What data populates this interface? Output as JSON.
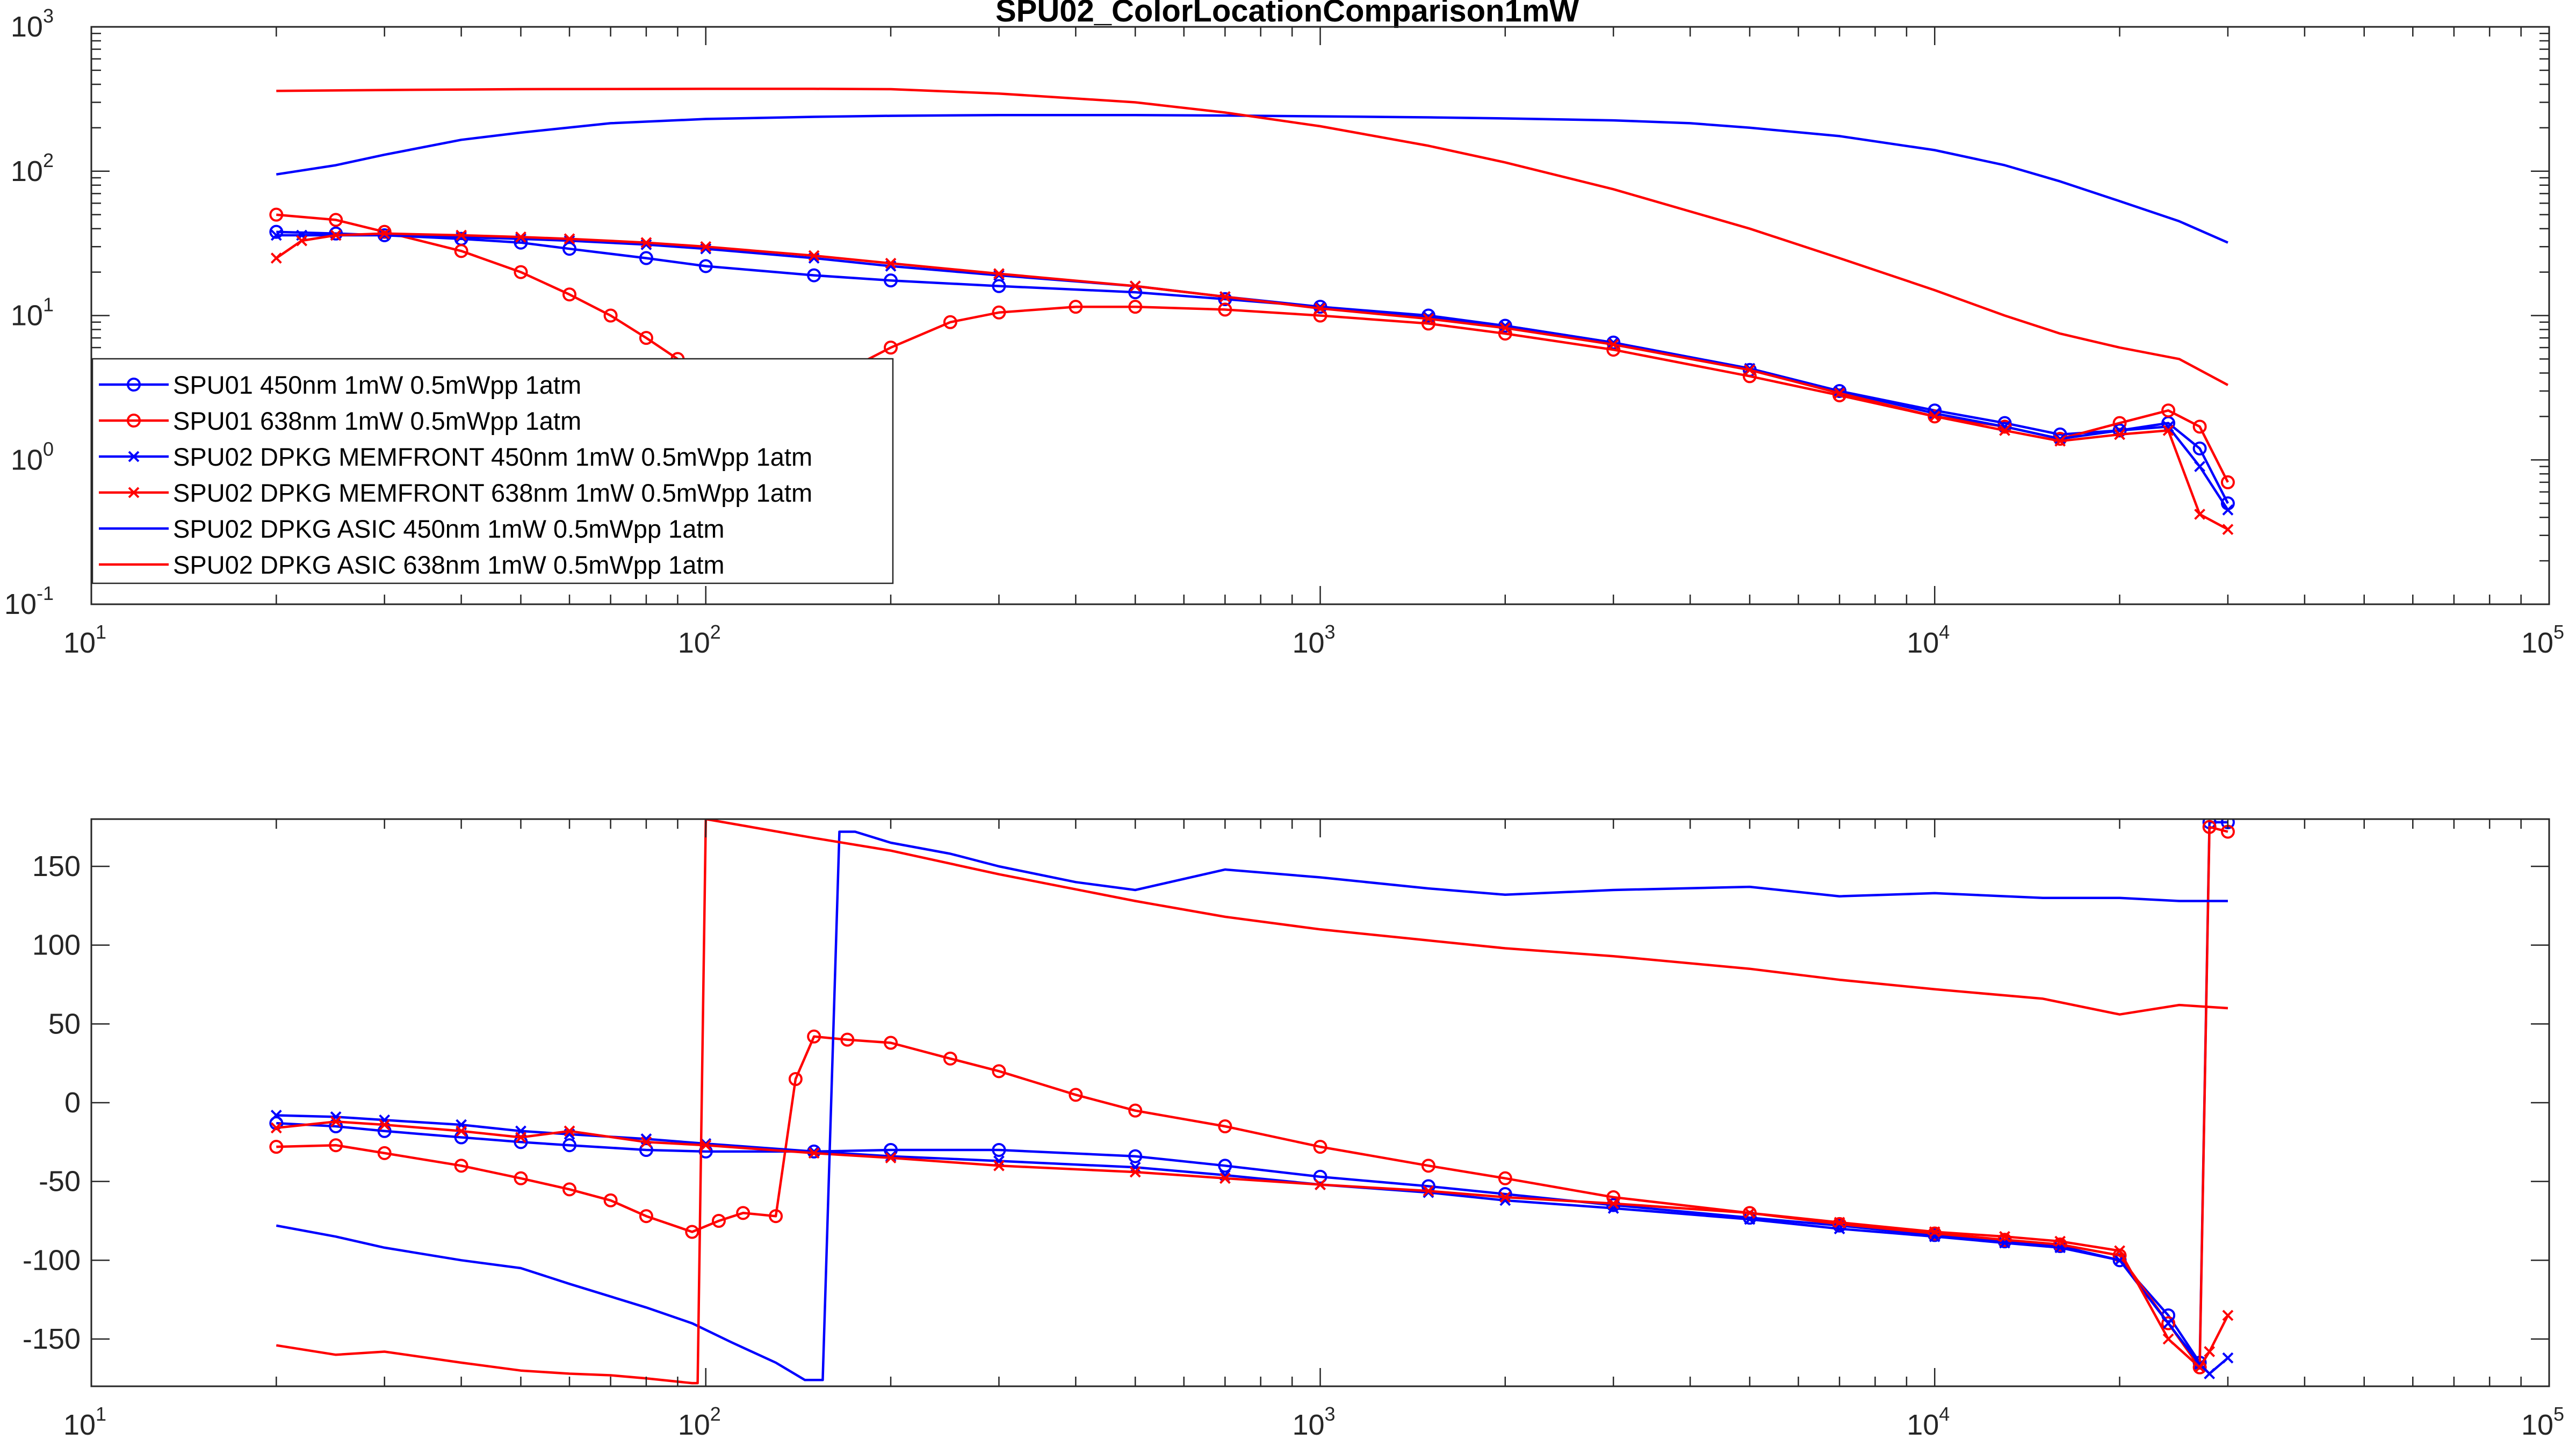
{
  "figure": {
    "title": "SPU02_ColorLocationComparison1mW"
  },
  "colors": {
    "blue": "#0000ff",
    "red": "#ff0000",
    "axis": "#262626"
  },
  "chart_data": [
    {
      "type": "line",
      "panel": "magnitude",
      "title": "SPU02_ColorLocationComparison1mW",
      "xlabel": "",
      "ylabel": "",
      "xscale": "log",
      "yscale": "log",
      "xlim": [
        10,
        100000
      ],
      "ylim": [
        0.1,
        1000
      ],
      "x_ticks": [
        {
          "base": "10",
          "exp": "1"
        },
        {
          "base": "10",
          "exp": "2"
        },
        {
          "base": "10",
          "exp": "3"
        },
        {
          "base": "10",
          "exp": "4"
        },
        {
          "base": "10",
          "exp": "5"
        }
      ],
      "y_ticks": [
        {
          "base": "10",
          "exp": "-1"
        },
        {
          "base": "10",
          "exp": "0"
        },
        {
          "base": "10",
          "exp": "1"
        },
        {
          "base": "10",
          "exp": "2"
        },
        {
          "base": "10",
          "exp": "3"
        }
      ],
      "grid": false,
      "legend": "inside-left",
      "series": [
        {
          "name": "SPU01 450nm 1mW 0.5mWpp 1atm",
          "color": "#0000ff",
          "marker": "circle",
          "x": [
            20,
            25,
            30,
            40,
            50,
            60,
            80,
            100,
            150,
            200,
            300,
            500,
            700,
            1000,
            1500,
            2000,
            3000,
            5000,
            7000,
            10000,
            13000,
            16000,
            20000,
            24000,
            27000,
            30000
          ],
          "y": [
            38,
            37,
            36,
            34,
            32,
            29,
            25,
            22,
            19,
            17.5,
            16,
            14.5,
            13,
            11.5,
            10,
            8.5,
            6.5,
            4.2,
            3,
            2.2,
            1.8,
            1.5,
            1.6,
            1.8,
            1.2,
            0.5
          ]
        },
        {
          "name": "SPU01 638nm 1mW 0.5mWpp 1atm",
          "color": "#ff0000",
          "marker": "circle",
          "x": [
            20,
            25,
            30,
            40,
            50,
            60,
            70,
            80,
            90,
            100,
            110,
            130,
            150,
            170,
            200,
            250,
            300,
            400,
            500,
            700,
            1000,
            1500,
            2000,
            3000,
            5000,
            7000,
            10000,
            13000,
            16000,
            20000,
            24000,
            27000,
            30000
          ],
          "y": [
            50,
            46,
            38,
            28,
            20,
            14,
            10,
            7,
            5,
            3.8,
            2.8,
            2.3,
            2.8,
            4.2,
            6,
            9,
            10.5,
            11.5,
            11.5,
            11,
            10,
            8.8,
            7.5,
            5.8,
            3.8,
            2.8,
            2,
            1.7,
            1.4,
            1.8,
            2.2,
            1.7,
            0.7
          ]
        },
        {
          "name": "SPU02 DPKG MEMFRONT 450nm 1mW 0.5mWpp 1atm",
          "color": "#0000ff",
          "marker": "x",
          "x": [
            20,
            22,
            25,
            30,
            40,
            50,
            60,
            80,
            100,
            150,
            200,
            300,
            500,
            700,
            1000,
            1500,
            2000,
            3000,
            5000,
            7000,
            10000,
            13000,
            16000,
            20000,
            24000,
            27000,
            30000
          ],
          "y": [
            36,
            36,
            36,
            36,
            35,
            34,
            33,
            31,
            29,
            25,
            22,
            19,
            16,
            13.5,
            11.5,
            9.8,
            8.5,
            6.5,
            4.3,
            3,
            2.1,
            1.7,
            1.4,
            1.6,
            1.7,
            0.9,
            0.45
          ]
        },
        {
          "name": "SPU02 DPKG MEMFRONT 638nm 1mW 0.5mWpp 1atm",
          "color": "#ff0000",
          "marker": "x",
          "x": [
            20,
            22,
            25,
            30,
            40,
            50,
            60,
            80,
            100,
            150,
            200,
            300,
            500,
            700,
            1000,
            1500,
            2000,
            3000,
            5000,
            7000,
            10000,
            13000,
            16000,
            20000,
            24000,
            27000,
            30000
          ],
          "y": [
            25,
            33,
            36,
            37,
            36,
            35,
            34,
            32,
            30,
            26,
            23,
            19.5,
            16,
            13.5,
            11.2,
            9.5,
            8.2,
            6.3,
            4.2,
            2.9,
            2.0,
            1.6,
            1.35,
            1.5,
            1.6,
            0.42,
            0.33
          ]
        },
        {
          "name": "SPU02 DPKG ASIC 450nm 1mW 0.5mWpp 1atm",
          "color": "#0000ff",
          "marker": "none",
          "x": [
            20,
            25,
            30,
            40,
            50,
            70,
            100,
            150,
            200,
            300,
            500,
            700,
            1000,
            1500,
            2000,
            3000,
            4000,
            5000,
            7000,
            10000,
            13000,
            16000,
            20000,
            25000,
            30000
          ],
          "y": [
            95,
            110,
            130,
            165,
            185,
            215,
            230,
            238,
            242,
            245,
            245,
            243,
            240,
            236,
            232,
            225,
            215,
            200,
            175,
            140,
            110,
            85,
            62,
            45,
            32
          ]
        },
        {
          "name": "SPU02 DPKG ASIC 638nm 1mW 0.5mWpp 1atm",
          "color": "#ff0000",
          "marker": "none",
          "x": [
            20,
            30,
            50,
            100,
            150,
            200,
            300,
            500,
            700,
            1000,
            1500,
            2000,
            3000,
            5000,
            7000,
            10000,
            13000,
            16000,
            20000,
            25000,
            30000
          ],
          "y": [
            360,
            365,
            370,
            372,
            372,
            370,
            345,
            300,
            255,
            205,
            150,
            115,
            75,
            40,
            25,
            15,
            10,
            7.5,
            6,
            5,
            3.3
          ]
        }
      ]
    },
    {
      "type": "line",
      "panel": "phase",
      "title": "",
      "xlabel": "",
      "ylabel": "",
      "xscale": "log",
      "yscale": "linear",
      "xlim": [
        10,
        100000
      ],
      "ylim": [
        -180,
        180
      ],
      "x_ticks": [
        {
          "base": "10",
          "exp": "1"
        },
        {
          "base": "10",
          "exp": "2"
        },
        {
          "base": "10",
          "exp": "3"
        },
        {
          "base": "10",
          "exp": "4"
        },
        {
          "base": "10",
          "exp": "5"
        }
      ],
      "y_ticks": [
        "-150",
        "-100",
        "-50",
        "0",
        "50",
        "100",
        "150"
      ],
      "grid": false,
      "legend": "none",
      "series": [
        {
          "name": "SPU01 450nm 1mW 0.5mWpp 1atm",
          "color": "#0000ff",
          "marker": "circle",
          "x": [
            20,
            25,
            30,
            40,
            50,
            60,
            80,
            100,
            150,
            200,
            300,
            500,
            700,
            1000,
            1500,
            2000,
            3000,
            5000,
            7000,
            10000,
            13000,
            16000,
            20000,
            24000,
            27000,
            28000,
            30000
          ],
          "y": [
            -13,
            -15,
            -18,
            -22,
            -25,
            -27,
            -30,
            -31,
            -31,
            -30,
            -30,
            -34,
            -40,
            -47,
            -53,
            -58,
            -65,
            -73,
            -78,
            -84,
            -88,
            -91,
            -100,
            -135,
            -165,
            178,
            178
          ]
        },
        {
          "name": "SPU01 638nm 1mW 0.5mWpp 1atm",
          "color": "#ff0000",
          "marker": "circle",
          "x": [
            20,
            25,
            30,
            40,
            50,
            60,
            70,
            80,
            95,
            105,
            115,
            130,
            140,
            150,
            170,
            200,
            250,
            300,
            400,
            500,
            700,
            1000,
            1500,
            2000,
            3000,
            5000,
            7000,
            10000,
            13000,
            16000,
            20000,
            24000,
            27000,
            28000,
            30000
          ],
          "y": [
            -28,
            -27,
            -32,
            -40,
            -48,
            -55,
            -62,
            -72,
            -82,
            -75,
            -70,
            -72,
            15,
            42,
            40,
            38,
            28,
            20,
            5,
            -5,
            -15,
            -28,
            -40,
            -48,
            -60,
            -70,
            -77,
            -83,
            -87,
            -90,
            -97,
            -140,
            -168,
            175,
            172
          ]
        },
        {
          "name": "SPU02 DPKG MEMFRONT 450nm 1mW 0.5mWpp 1atm",
          "color": "#0000ff",
          "marker": "x",
          "x": [
            20,
            25,
            30,
            40,
            50,
            60,
            80,
            100,
            150,
            200,
            300,
            500,
            700,
            1000,
            1500,
            2000,
            3000,
            5000,
            7000,
            10000,
            13000,
            16000,
            20000,
            24000,
            27000,
            28000,
            30000
          ],
          "y": [
            -8,
            -9,
            -11,
            -14,
            -18,
            -20,
            -23,
            -26,
            -31,
            -34,
            -37,
            -41,
            -46,
            -52,
            -57,
            -62,
            -67,
            -74,
            -80,
            -85,
            -89,
            -92,
            -100,
            -140,
            -166,
            -172,
            -162
          ]
        },
        {
          "name": "SPU02 DPKG MEMFRONT 638nm 1mW 0.5mWpp 1atm",
          "color": "#ff0000",
          "marker": "x",
          "x": [
            20,
            25,
            30,
            40,
            50,
            60,
            80,
            100,
            150,
            200,
            300,
            500,
            700,
            1000,
            1500,
            2000,
            3000,
            5000,
            7000,
            10000,
            13000,
            16000,
            20000,
            24000,
            27000,
            28000,
            30000
          ],
          "y": [
            -16,
            -12,
            -14,
            -18,
            -22,
            -18,
            -25,
            -27,
            -32,
            -35,
            -40,
            -44,
            -48,
            -52,
            -56,
            -60,
            -64,
            -70,
            -76,
            -82,
            -85,
            -88,
            -94,
            -150,
            -168,
            -158,
            -135
          ]
        },
        {
          "name": "SPU02 DPKG ASIC 450nm 1mW 0.5mWpp 1atm",
          "color": "#0000ff",
          "marker": "none",
          "x": [
            20,
            25,
            30,
            40,
            50,
            60,
            80,
            95,
            110,
            130,
            145,
            155,
            165,
            175,
            200,
            250,
            300,
            400,
            500,
            700,
            1000,
            1500,
            2000,
            3000,
            5000,
            7000,
            10000,
            15000,
            20000,
            25000,
            30000
          ],
          "y": [
            -78,
            -85,
            -92,
            -100,
            -105,
            -115,
            -130,
            -140,
            -152,
            -165,
            -176,
            -176,
            172,
            172,
            165,
            158,
            150,
            140,
            135,
            148,
            143,
            136,
            132,
            135,
            137,
            131,
            133,
            130,
            130,
            128,
            128
          ]
        },
        {
          "name": "SPU02 DPKG ASIC 638nm 1mW 0.5mWpp 1atm",
          "color": "#ff0000",
          "marker": "none",
          "x": [
            20,
            25,
            30,
            40,
            50,
            60,
            70,
            80,
            95,
            97,
            100,
            150,
            200,
            300,
            500,
            700,
            1000,
            1500,
            2000,
            3000,
            5000,
            7000,
            10000,
            15000,
            20000,
            25000,
            30000
          ],
          "y": [
            -154,
            -160,
            -158,
            -165,
            -170,
            -172,
            -173,
            -175,
            -178,
            -178,
            180,
            168,
            160,
            145,
            128,
            118,
            110,
            103,
            98,
            93,
            85,
            78,
            72,
            66,
            56,
            62,
            60
          ]
        }
      ]
    }
  ]
}
